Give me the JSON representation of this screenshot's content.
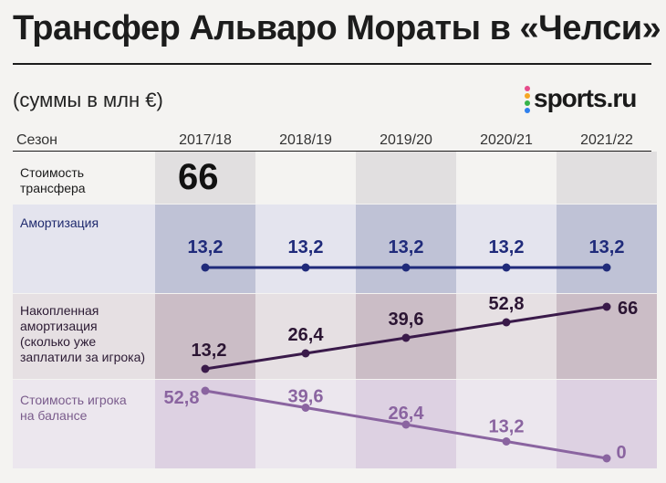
{
  "header": {
    "title": "Трансфер Альваро Мораты в «Челси»",
    "subtitle": "(суммы в млн €)",
    "logo_text": "sports.ru",
    "logo_dot_colors": [
      "#e64b8b",
      "#f5a623",
      "#37b34a",
      "#2f80ed"
    ]
  },
  "table": {
    "season_label": "Сезон",
    "transfer_label": "Стоимость\nтрансфера",
    "transfer_value": "66",
    "amort_label": "Амортизация",
    "accum_label": "Накопленная\nамортизация\n(сколько уже\nзаплатили за игрока)",
    "balance_label": "Стоимость игрока\nна балансе"
  },
  "chart_data": {
    "type": "line",
    "categories": [
      "2017/18",
      "2018/19",
      "2019/20",
      "2020/21",
      "2021/22"
    ],
    "series": [
      {
        "name": "Амортизация",
        "values": [
          13.2,
          13.2,
          13.2,
          13.2,
          13.2
        ],
        "labels": [
          "13,2",
          "13,2",
          "13,2",
          "13,2",
          "13,2"
        ],
        "color": "#1f2a7a"
      },
      {
        "name": "Накопленная амортизация",
        "values": [
          13.2,
          26.4,
          39.6,
          52.8,
          66
        ],
        "labels": [
          "13,2",
          "26,4",
          "39,6",
          "52,8",
          "66"
        ],
        "color": "#3a1a4a"
      },
      {
        "name": "Стоимость игрока на балансе",
        "values": [
          52.8,
          39.6,
          26.4,
          13.2,
          0
        ],
        "labels": [
          "52,8",
          "39,6",
          "26,4",
          "13,2",
          "0"
        ],
        "color": "#8a64a0"
      }
    ],
    "ylim": [
      0,
      66
    ]
  },
  "colors": {
    "col_dark": "#e1dfe0",
    "amort_dark": "#bfc2d6",
    "amort_light": "#e4e4ee",
    "accum_dark": "#cbbdc6",
    "accum_light": "#e6e0e3",
    "bal_dark": "#ddd1e2",
    "bal_light": "#ece7ee"
  }
}
